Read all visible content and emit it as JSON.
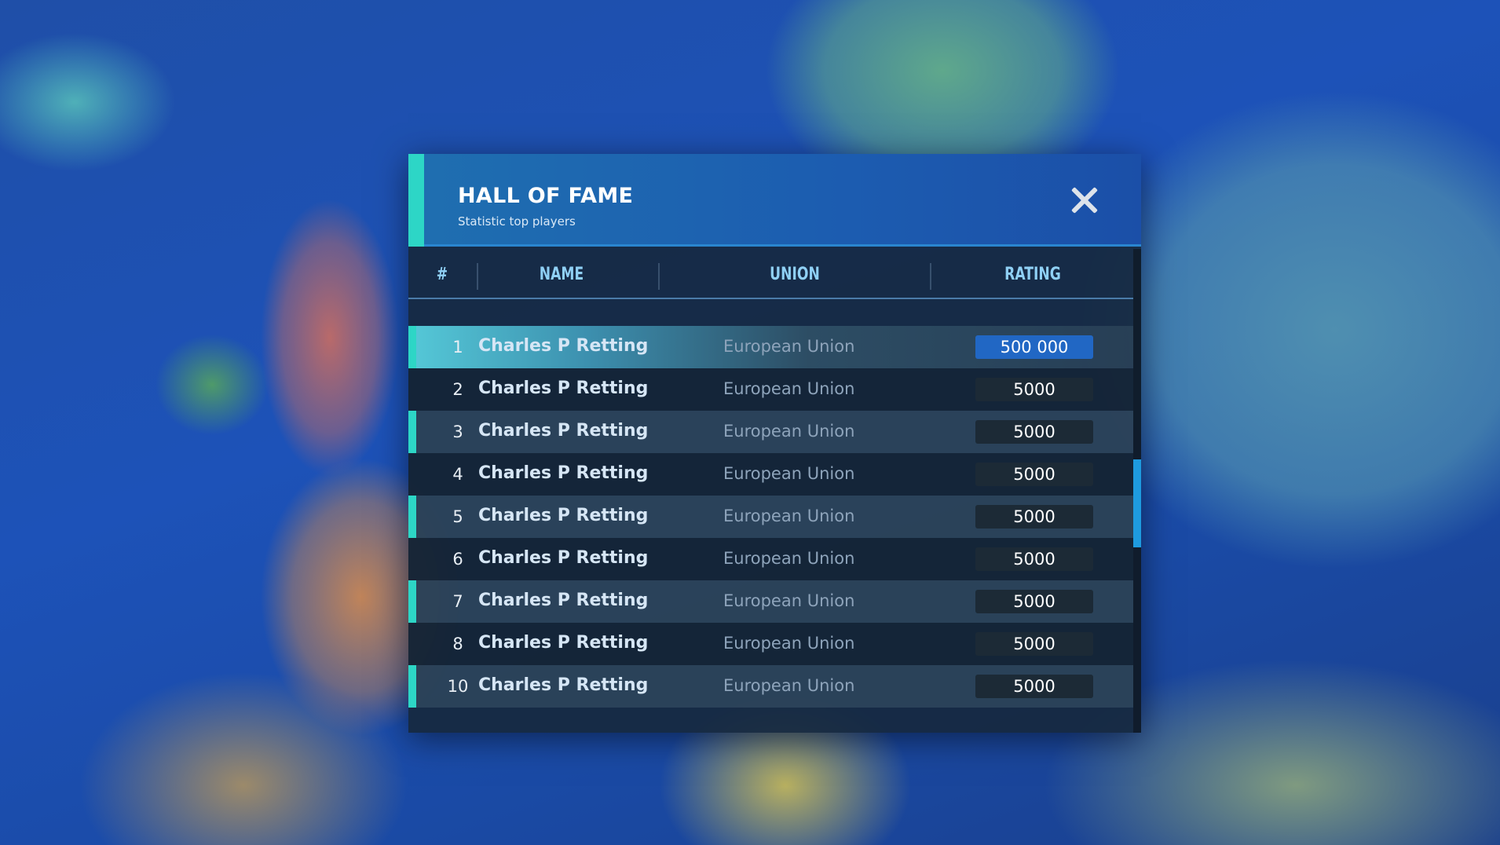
{
  "dialog": {
    "title": "HALL OF FAME",
    "subtitle": "Statistic top players",
    "close_icon": "close-icon"
  },
  "columns": [
    "#",
    "NAME",
    "UNION",
    "RATING"
  ],
  "rows": [
    {
      "rank": "1",
      "name": "Charles P Retting",
      "union": "European Union",
      "rating": "500 000"
    },
    {
      "rank": "2",
      "name": "Charles P Retting",
      "union": "European Union",
      "rating": "5000"
    },
    {
      "rank": "3",
      "name": "Charles P Retting",
      "union": "European Union",
      "rating": "5000"
    },
    {
      "rank": "4",
      "name": "Charles P Retting",
      "union": "European Union",
      "rating": "5000"
    },
    {
      "rank": "5",
      "name": "Charles P Retting",
      "union": "European Union",
      "rating": "5000"
    },
    {
      "rank": "6",
      "name": "Charles P Retting",
      "union": "European Union",
      "rating": "5000"
    },
    {
      "rank": "7",
      "name": "Charles P Retting",
      "union": "European Union",
      "rating": "5000"
    },
    {
      "rank": "8",
      "name": "Charles P Retting",
      "union": "European Union",
      "rating": "5000"
    },
    {
      "rank": "10",
      "name": "Charles P Retting",
      "union": "European Union",
      "rating": "5000"
    }
  ],
  "colors": {
    "accent": "#2dd6c6",
    "header": "#1f6fb0",
    "highlight_rating": "#2167c4",
    "scroll_thumb": "#1e9be0"
  }
}
